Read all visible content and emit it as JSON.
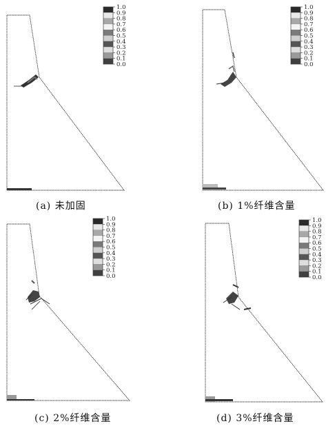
{
  "legend": {
    "labels": [
      "1.0",
      "0.9",
      "0.8",
      "0.7",
      "0.6",
      "0.5",
      "0.4",
      "0.3",
      "0.2",
      "0.1",
      "0.0"
    ],
    "colors": [
      "#2a2a2a",
      "#e8e8e8",
      "#a8a8a8",
      "#f4f4f4",
      "#7a7a7a",
      "#cfcfcf",
      "#555555",
      "#dedede",
      "#9a9a9a",
      "#404040",
      "#ffffff"
    ]
  },
  "panels": [
    {
      "caption": "(a) 未加固"
    },
    {
      "caption": "(b) 1%纤维含量"
    },
    {
      "caption": "(c) 2%纤维含量"
    },
    {
      "caption": "(d) 3%纤维含量"
    }
  ]
}
